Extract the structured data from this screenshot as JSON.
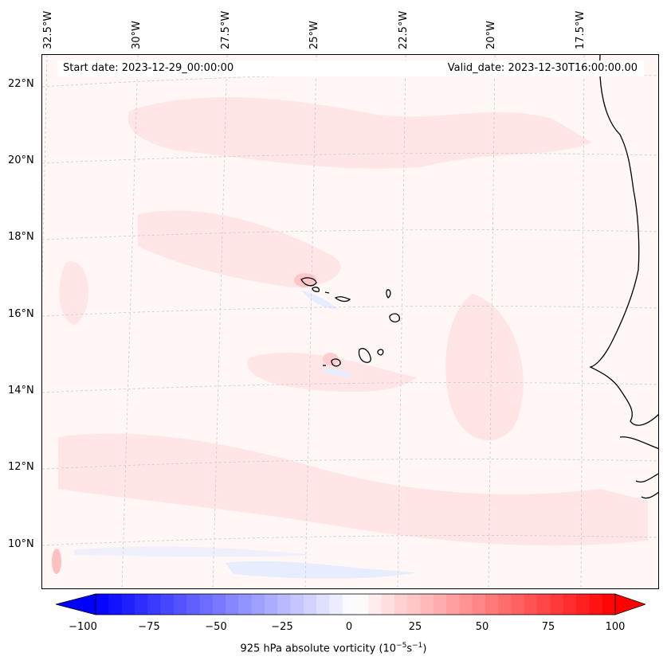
{
  "header": {
    "start_date": "Start date: 2023-12-29_00:00:00",
    "valid_date": "Valid_date: 2023-12-30T16:00:00.00"
  },
  "longitude_labels": [
    "32.5°W",
    "30°W",
    "27.5°W",
    "25°W",
    "22.5°W",
    "20°W",
    "17.5°W"
  ],
  "latitude_labels": [
    "22°N",
    "20°N",
    "18°N",
    "16°N",
    "14°N",
    "12°N",
    "10°N"
  ],
  "colorbar": {
    "ticks": [
      "−100",
      "−75",
      "−50",
      "−25",
      "0",
      "25",
      "50",
      "75",
      "100"
    ],
    "label": "925 hPa absolute vorticity (10",
    "label_exp1": "−5",
    "label_mid": "s",
    "label_exp2": "−1",
    "label_end": ")",
    "range": [
      -100,
      100
    ],
    "colormap": "bwr",
    "colors": {
      "min": "#0000ff",
      "mid": "#ffffff",
      "max": "#ff0000"
    }
  },
  "map": {
    "field": "925 hPa absolute vorticity",
    "background_color": "#fff6f6",
    "positive_patch_color": "#ffe6e6",
    "negative_patch_color": "#ecefff",
    "coastline_color": "#000000",
    "gridline_color": "#cccccc"
  }
}
